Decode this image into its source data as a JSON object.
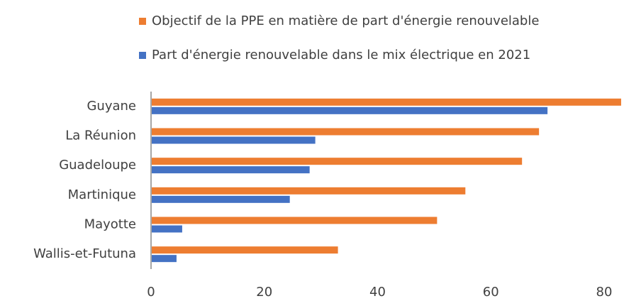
{
  "chart_data": {
    "type": "hbar",
    "categories": [
      "Guyane",
      "La Réunion",
      "Guadeloupe",
      "Martinique",
      "Mayotte",
      "Wallis-et-Futuna"
    ],
    "series": [
      {
        "name": "Objectif de la PPE en matière de part d'énergie renouvelable",
        "color": "#ed7d31",
        "values": [
          83,
          68.5,
          65.5,
          55.5,
          50.5,
          33
        ]
      },
      {
        "name": "Part d'énergie renouvelable dans le mix électrique en 2021",
        "color": "#4472c4",
        "values": [
          70,
          29,
          28,
          24.5,
          5.5,
          4.5
        ]
      }
    ],
    "xlim": [
      0,
      80
    ],
    "xticks": [
      0,
      20,
      40,
      60,
      80
    ],
    "legend": "top"
  }
}
